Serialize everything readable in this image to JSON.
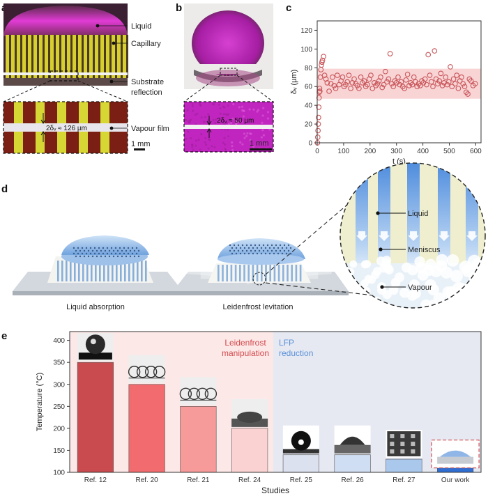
{
  "panel_letters": {
    "a": "a",
    "b": "b",
    "c": "c",
    "d": "d",
    "e": "e"
  },
  "panel_a": {
    "labels": [
      "Liquid",
      "Capillary",
      "Substrate",
      "reflection",
      "Vapour film"
    ],
    "measurement": "2δᵥ ≈ 126 µm",
    "scale_bar": "1 mm"
  },
  "panel_b": {
    "measurement": "2δᵥ ≈ 50 µm",
    "scale_bar": "1 mm"
  },
  "chart_data": [
    {
      "type": "scatter",
      "panel": "c",
      "xlabel": "t (s)",
      "ylabel": "δᵥ (µm)",
      "xlim": [
        0,
        620
      ],
      "ylim": [
        0,
        130
      ],
      "xticks": [
        0,
        100,
        200,
        300,
        400,
        500,
        600
      ],
      "yticks": [
        0,
        20,
        40,
        60,
        80,
        100,
        120
      ],
      "band": [
        47,
        79
      ],
      "x": [
        1,
        2,
        3,
        4,
        5,
        6,
        7,
        8,
        9,
        10,
        12,
        14,
        16,
        18,
        20,
        24,
        28,
        33,
        38,
        45,
        52,
        58,
        64,
        70,
        76,
        83,
        90,
        96,
        102,
        108,
        114,
        120,
        127,
        133,
        140,
        146,
        152,
        158,
        165,
        171,
        178,
        184,
        190,
        197,
        203,
        209,
        216,
        222,
        228,
        234,
        240,
        246,
        252,
        258,
        264,
        270,
        276,
        282,
        288,
        294,
        300,
        306,
        312,
        318,
        324,
        330,
        336,
        342,
        348,
        354,
        360,
        366,
        372,
        378,
        384,
        390,
        396,
        402,
        408,
        414,
        420,
        426,
        432,
        438,
        444,
        450,
        456,
        462,
        468,
        474,
        480,
        486,
        492,
        498,
        504,
        510,
        516,
        522,
        528,
        534,
        540,
        546,
        552,
        558,
        564,
        570,
        576,
        582,
        590,
        598
      ],
      "y": [
        0,
        6,
        13,
        20,
        27,
        38,
        48,
        54,
        58,
        55,
        70,
        78,
        83,
        86,
        88,
        92,
        72,
        68,
        64,
        55,
        63,
        70,
        61,
        58,
        72,
        62,
        66,
        70,
        60,
        62,
        65,
        72,
        58,
        64,
        68,
        63,
        61,
        58,
        70,
        64,
        66,
        60,
        62,
        68,
        72,
        58,
        64,
        61,
        63,
        66,
        70,
        59,
        62,
        76,
        65,
        68,
        95,
        63,
        60,
        66,
        64,
        70,
        62,
        65,
        60,
        58,
        67,
        73,
        61,
        64,
        62,
        70,
        65,
        60,
        63,
        61,
        66,
        64,
        68,
        62,
        94,
        72,
        65,
        60,
        98,
        68,
        63,
        66,
        74,
        61,
        64,
        70,
        62,
        65,
        81,
        60,
        68,
        63,
        72,
        58,
        66,
        70,
        63,
        60,
        54,
        52,
        68,
        66,
        61,
        63
      ],
      "marker_color": "#c9565a",
      "band_color": "#f6c9cb"
    },
    {
      "type": "bar",
      "panel": "e",
      "categories": [
        "Ref. 12",
        "Ref. 20",
        "Ref. 21",
        "Ref. 24",
        "Ref. 25",
        "Ref. 26",
        "Ref. 27",
        "Our work"
      ],
      "values": [
        350,
        300,
        250,
        200,
        140,
        140,
        130,
        110
      ],
      "colors": [
        "#c94a4f",
        "#f26b6e",
        "#f79a9a",
        "#fbd2d2",
        "#dbe1ef",
        "#d0def3",
        "#a9c8ec",
        "#2f6fd3"
      ],
      "xlabel": "Studies",
      "ylabel": "Temperature (°C)",
      "ylim": [
        100,
        420
      ],
      "yticks": [
        100,
        150,
        200,
        250,
        300,
        350,
        400
      ],
      "region_labels": {
        "left": "Leidenfrost\nmanipulation",
        "left_line1": "Leidenfrost",
        "left_line2": "manipulation",
        "right_line1": "LFP",
        "right_line2": "reduction"
      }
    }
  ],
  "panel_d": {
    "captions": [
      "Liquid absorption",
      "Leidenfrost levitation"
    ],
    "inset_labels": [
      "Liquid",
      "Meniscus",
      "Vapour"
    ]
  },
  "colors": {
    "magenta": "#c51ec4",
    "yellow": "#d9d12b",
    "liquid_blue": "#7fb0e8",
    "red_region": "#fde8e8",
    "blue_region": "#e6e9f2"
  }
}
